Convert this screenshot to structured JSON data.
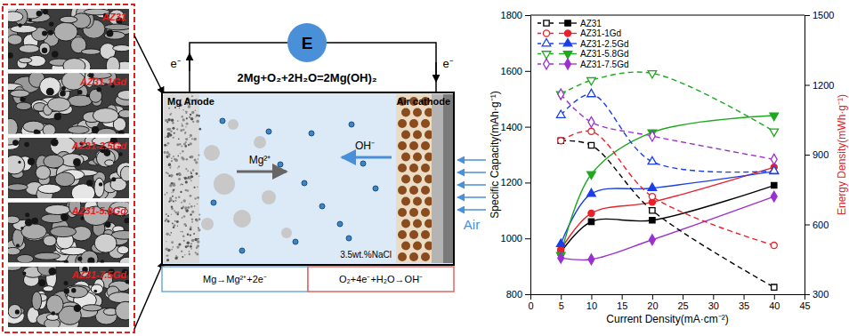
{
  "chart_data": {
    "type": "line",
    "x_label": "Current Density(mA·cm⁻²)",
    "y_label": "Specific Capacity(mAh·g⁻¹)",
    "y2_label": "Energy Density(mWh·g⁻¹)",
    "x": [
      5,
      10,
      20,
      40
    ],
    "xlim": [
      0,
      45
    ],
    "xticks": [
      0,
      5,
      10,
      15,
      20,
      25,
      30,
      35,
      40,
      45
    ],
    "ylim": [
      800,
      1800
    ],
    "yticks": [
      800,
      1000,
      1200,
      1400,
      1600,
      1800
    ],
    "y2lim": [
      300,
      1500
    ],
    "y2ticks": [
      300,
      600,
      900,
      1200,
      1500
    ],
    "grid": false,
    "legend": "upper left",
    "series": [
      {
        "name": "AZ31",
        "color": "#000000",
        "marker": "square",
        "line_style": "solid",
        "values": [
          950,
          1060,
          1065,
          1190
        ]
      },
      {
        "name": "AZ31-1Gd",
        "color": "#e8222a",
        "marker": "circle",
        "line_style": "solid",
        "values": [
          960,
          1090,
          1130,
          1255
        ]
      },
      {
        "name": "AZ31-2.5Gd",
        "color": "#1a3ee8",
        "marker": "triangle-up",
        "line_style": "solid",
        "values": [
          980,
          1160,
          1180,
          1240
        ]
      },
      {
        "name": "AZ31-5.8Gd",
        "color": "#1ea81e",
        "marker": "triangle-down",
        "line_style": "solid",
        "values": [
          940,
          1230,
          1380,
          1440
        ]
      },
      {
        "name": "AZ31-7.5Gd",
        "color": "#9b30d0",
        "marker": "diamond",
        "line_style": "solid",
        "values": [
          930,
          925,
          995,
          1150
        ]
      },
      {
        "color": "#000000",
        "marker": "open-square",
        "line_style": "dashed",
        "axis": "y2",
        "values": [
          960,
          940,
          660,
          330
        ]
      },
      {
        "color": "#e8222a",
        "marker": "open-circle",
        "line_style": "dashed",
        "axis": "y2",
        "values": [
          960,
          1000,
          720,
          510
        ]
      },
      {
        "color": "#1a3ee8",
        "marker": "open-triangle-up",
        "line_style": "dashed",
        "axis": "y2",
        "values": [
          1070,
          1160,
          870,
          830
        ]
      },
      {
        "color": "#1ea81e",
        "marker": "open-triangle-down",
        "line_style": "dashed",
        "axis": "y2",
        "values": [
          1160,
          1220,
          1250,
          1000
        ]
      },
      {
        "color": "#9b30d0",
        "marker": "open-diamond",
        "line_style": "dashed",
        "axis": "y2",
        "values": [
          1160,
          1040,
          980,
          880
        ]
      }
    ]
  },
  "figure": {
    "micrographs": [
      "AZ31",
      "AZ31-1Gd",
      "AZ31-2.5Gd",
      "AZ31-5.8Gd",
      "AZ31-7.5Gd"
    ],
    "cell": {
      "power_source": "E",
      "reaction": "2Mg+O₂+2H₂O=2Mg(OH)₂",
      "electron_labels": [
        "e⁻",
        "e⁻"
      ],
      "anode": "Mg Anode",
      "cathode": "Air cathode",
      "cation": "Mg²⁺",
      "anion": "OH⁻",
      "electrolyte": "3.5wt.%NaCl",
      "gas": "Air",
      "anode_reaction": "Mg→Mg²⁺+2e⁻",
      "cathode_reaction": "O₂+4e⁻+H₂O→OH⁻"
    }
  }
}
